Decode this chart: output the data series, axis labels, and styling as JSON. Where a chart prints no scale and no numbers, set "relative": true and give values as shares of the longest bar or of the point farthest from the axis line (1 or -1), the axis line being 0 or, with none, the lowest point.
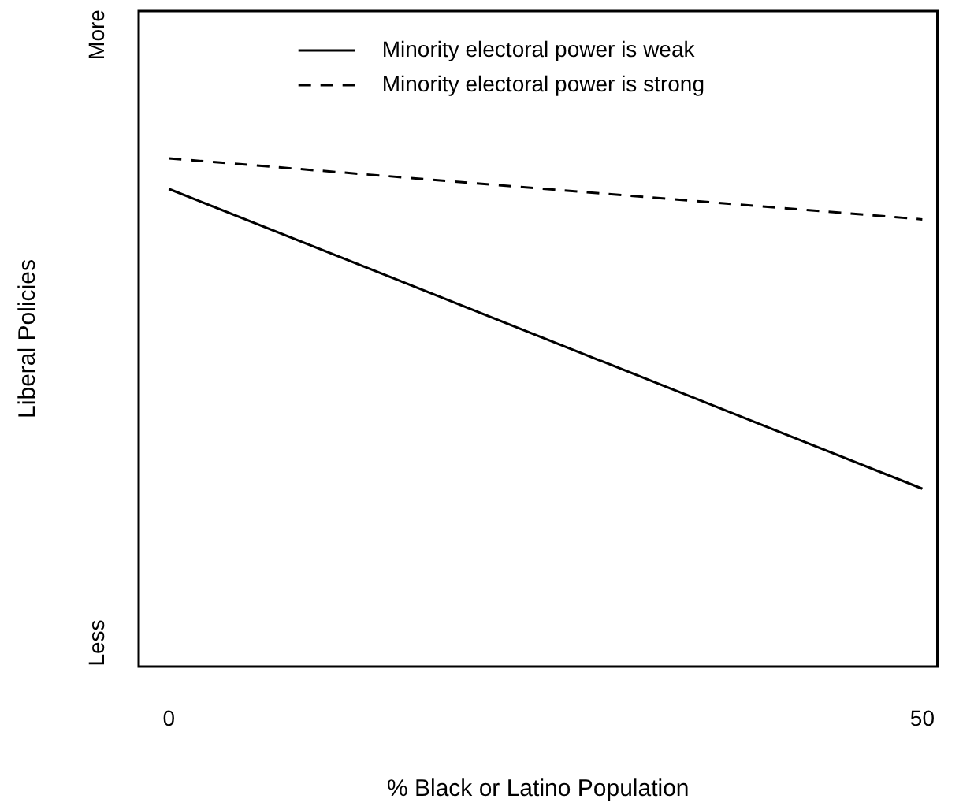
{
  "chart_data": {
    "type": "line",
    "xlabel": "% Black or Latino Population",
    "ylabel": "Liberal Policies",
    "x": [
      0,
      50
    ],
    "xlim": [
      -2,
      51
    ],
    "xticks": [
      0,
      50
    ],
    "relative": true,
    "annotations": [
      "More",
      "Less"
    ],
    "grid": false,
    "legend": "top",
    "marker": "none",
    "series": [
      {
        "name": "Minority electoral power is weak",
        "color": "#000000",
        "line_style": "solid",
        "values": [
          0.94,
          0.35
        ]
      },
      {
        "name": "Minority electoral power is strong",
        "color": "#000000",
        "line_style": "dashed",
        "values": [
          1,
          0.88
        ]
      }
    ]
  }
}
